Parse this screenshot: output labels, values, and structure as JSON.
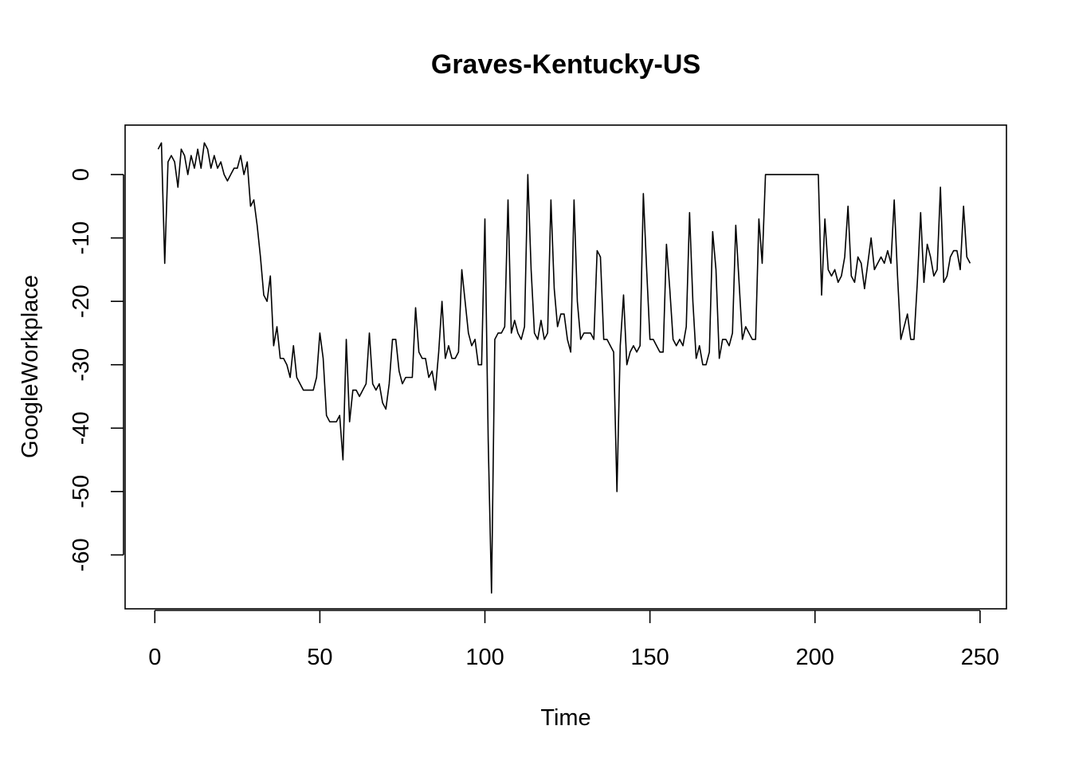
{
  "chart_data": {
    "type": "line",
    "title": "Graves-Kentucky-US",
    "xlabel": "Time",
    "ylabel": "GoogleWorkplace",
    "xlim": [
      -9,
      258
    ],
    "ylim": [
      -68.5,
      7.8
    ],
    "xticks": [
      0,
      50,
      100,
      150,
      200,
      250
    ],
    "yticks": [
      0,
      -10,
      -20,
      -30,
      -40,
      -50,
      -60
    ],
    "grid": false,
    "legend": "none",
    "line_color": "#000000",
    "series": [
      {
        "x_start": 1,
        "values": [
          4,
          5,
          -14,
          2,
          3,
          2,
          -2,
          4,
          3,
          0,
          3,
          1,
          4,
          1,
          5,
          4,
          1,
          3,
          1,
          2,
          0,
          -1,
          0,
          1,
          1,
          3,
          0,
          2,
          -5,
          -4,
          -8,
          -13,
          -19,
          -20,
          -16,
          -27,
          -24,
          -29,
          -29,
          -30,
          -32,
          -27,
          -32,
          -33,
          -34,
          -34,
          -34,
          -34,
          -32,
          -25,
          -29,
          -38,
          -39,
          -39,
          -39,
          -38,
          -45,
          -26,
          -39,
          -34,
          -34,
          -35,
          -34,
          -33,
          -25,
          -33,
          -34,
          -33,
          -36,
          -37,
          -33,
          -26,
          -26,
          -31,
          -33,
          -32,
          -32,
          -32,
          -21,
          -28,
          -29,
          -29,
          -32,
          -31,
          -34,
          -28,
          -20,
          -29,
          -27,
          -29,
          -29,
          -28,
          -15,
          -20,
          -25,
          -27,
          -26,
          -30,
          -30,
          -7,
          -42,
          -66,
          -26,
          -25,
          -25,
          -24,
          -4,
          -25,
          -23,
          -25,
          -26,
          -24,
          0,
          -15,
          -25,
          -26,
          -23,
          -26,
          -25,
          -4,
          -18,
          -24,
          -22,
          -22,
          -26,
          -28,
          -4,
          -20,
          -26,
          -25,
          -25,
          -25,
          -26,
          -12,
          -13,
          -26,
          -26,
          -27,
          -28,
          -50,
          -27,
          -19,
          -30,
          -28,
          -27,
          -28,
          -27,
          -3,
          -15,
          -26,
          -26,
          -27,
          -28,
          -28,
          -11,
          -18,
          -26,
          -27,
          -26,
          -27,
          -24,
          -6,
          -20,
          -29,
          -27,
          -30,
          -30,
          -28,
          -9,
          -15,
          -29,
          -26,
          -26,
          -27,
          -25,
          -8,
          -17,
          -26,
          -24,
          -25,
          -26,
          -26,
          -7,
          -14,
          0,
          0,
          0,
          0,
          0,
          0,
          0,
          0,
          0,
          0,
          0,
          0,
          0,
          0,
          0,
          0,
          0,
          -19,
          -7,
          -15,
          -16,
          -15,
          -17,
          -16,
          -13,
          -5,
          -16,
          -17,
          -13,
          -14,
          -18,
          -14,
          -10,
          -15,
          -14,
          -13,
          -14,
          -12,
          -14,
          -4,
          -16,
          -26,
          -24,
          -22,
          -26,
          -26,
          -17,
          -6,
          -17,
          -11,
          -13,
          -16,
          -15,
          -2,
          -17,
          -16,
          -13,
          -12,
          -12,
          -15,
          -5,
          -13,
          -14
        ]
      }
    ]
  }
}
